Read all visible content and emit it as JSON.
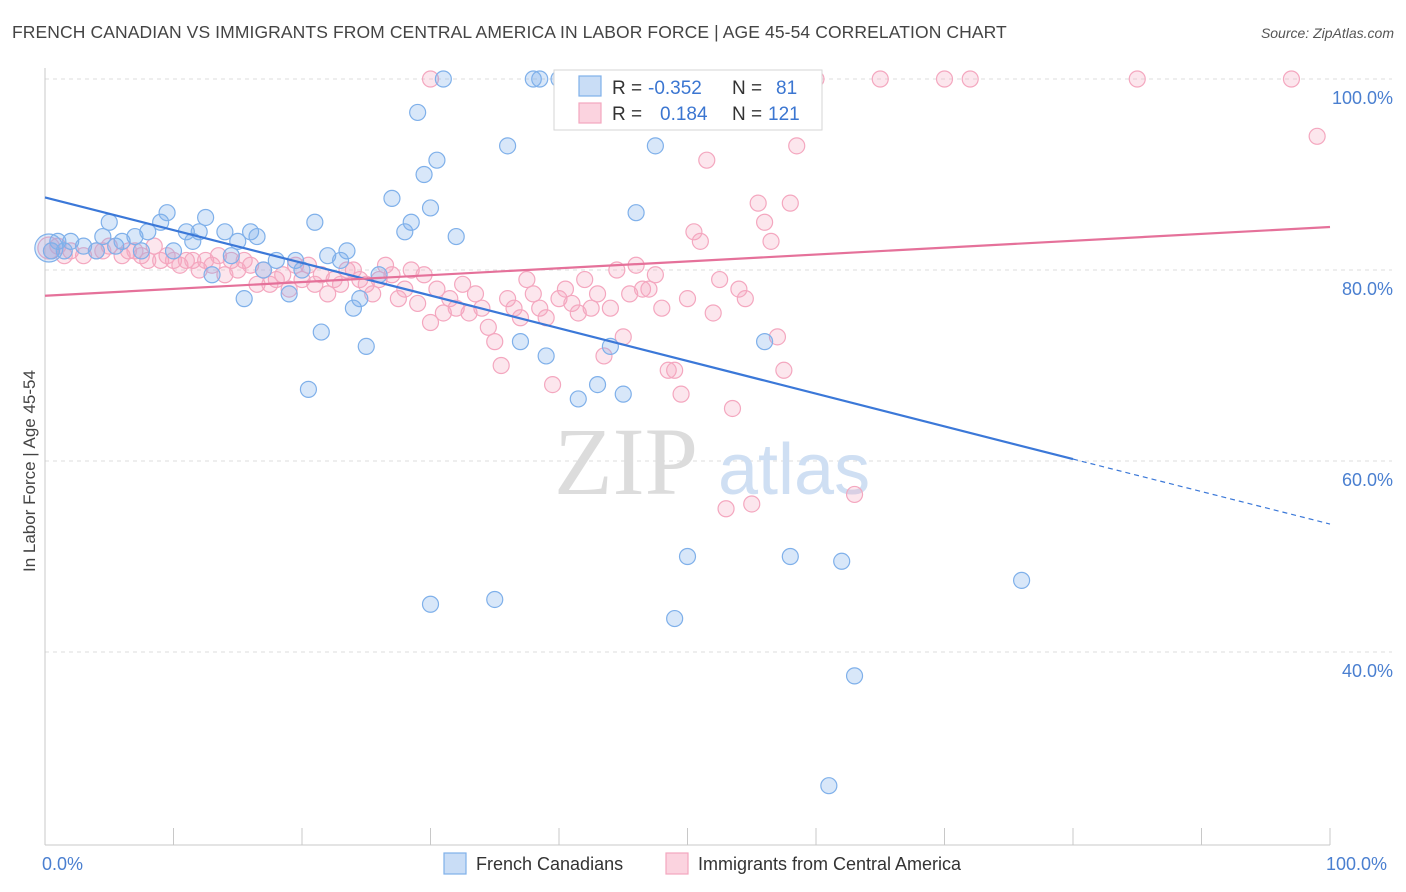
{
  "title": "FRENCH CANADIAN VS IMMIGRANTS FROM CENTRAL AMERICA IN LABOR FORCE | AGE 45-54 CORRELATION CHART",
  "source": "Source: ZipAtlas.com",
  "watermark": {
    "zip": "ZIP",
    "atlas": "atlas"
  },
  "legend": {
    "r_label": "R =",
    "n_label": "N =",
    "rows": [
      {
        "r": "-0.352",
        "n": "81",
        "color": "#7fb0ea"
      },
      {
        "r": "0.184",
        "n": "121",
        "color": "#f4a7bf"
      }
    ]
  },
  "bottom_legend": [
    "French Canadians",
    "Immigrants from Central America"
  ],
  "chart_data": {
    "type": "scatter",
    "title": "FRENCH CANADIAN VS IMMIGRANTS FROM CENTRAL AMERICA IN LABOR FORCE | AGE 45-54 CORRELATION CHART",
    "xlabel": "",
    "ylabel": "In Labor Force | Age 45-54",
    "xlim": [
      0,
      100
    ],
    "ylim": [
      20,
      102
    ],
    "x_tick_labels": [
      "0.0%",
      "100.0%"
    ],
    "y_ticks": [
      40,
      60,
      80,
      100
    ],
    "y_tick_labels": [
      "40.0%",
      "60.0%",
      "80.0%",
      "100.0%"
    ],
    "grid": true,
    "legend_position": "top-center",
    "series": [
      {
        "name": "French Canadians",
        "color": "#7fb0ea",
        "line_color": "#3b78d8",
        "r": -0.352,
        "n": 81,
        "trend": {
          "x0": 0,
          "y0": 87.6,
          "x1": 80,
          "y1": 60.2,
          "dash_to_x": 100,
          "dash_to_y": 53.4
        },
        "points": [
          [
            0.5,
            82
          ],
          [
            1,
            83
          ],
          [
            1.5,
            82
          ],
          [
            2,
            83
          ],
          [
            3,
            82.5
          ],
          [
            4,
            82
          ],
          [
            4.5,
            83.5
          ],
          [
            5,
            85
          ],
          [
            5.5,
            82.5
          ],
          [
            6,
            83
          ],
          [
            7,
            83.5
          ],
          [
            7.5,
            82
          ],
          [
            8,
            84
          ],
          [
            9,
            85
          ],
          [
            9.5,
            86
          ],
          [
            10,
            82
          ],
          [
            11,
            84
          ],
          [
            11.5,
            83
          ],
          [
            12,
            84
          ],
          [
            12.5,
            85.5
          ],
          [
            13,
            79.5
          ],
          [
            14,
            84
          ],
          [
            14.5,
            81.5
          ],
          [
            15,
            83
          ],
          [
            15.5,
            77
          ],
          [
            16,
            84
          ],
          [
            16.5,
            83.5
          ],
          [
            17,
            80
          ],
          [
            18,
            81
          ],
          [
            19,
            77.5
          ],
          [
            19.5,
            81
          ],
          [
            20,
            80
          ],
          [
            20.5,
            67.5
          ],
          [
            21,
            85
          ],
          [
            21.5,
            73.5
          ],
          [
            22,
            81.5
          ],
          [
            23,
            81
          ],
          [
            23.5,
            82
          ],
          [
            24,
            76
          ],
          [
            24.5,
            77
          ],
          [
            25,
            72
          ],
          [
            26,
            79.5
          ],
          [
            27,
            87.5
          ],
          [
            28,
            84
          ],
          [
            28.5,
            85
          ],
          [
            29,
            96.5
          ],
          [
            29.5,
            90
          ],
          [
            30,
            86.5
          ],
          [
            30.5,
            91.5
          ],
          [
            31,
            100
          ],
          [
            32,
            83.5
          ],
          [
            30,
            45
          ],
          [
            35,
            45.5
          ],
          [
            36,
            93
          ],
          [
            37,
            72.5
          ],
          [
            38,
            100
          ],
          [
            38.5,
            100
          ],
          [
            39,
            71
          ],
          [
            40,
            100
          ],
          [
            41,
            100
          ],
          [
            41.5,
            66.5
          ],
          [
            42,
            100
          ],
          [
            42.5,
            100
          ],
          [
            43,
            68
          ],
          [
            44,
            72
          ],
          [
            45,
            67
          ],
          [
            46,
            86
          ],
          [
            46.5,
            100
          ],
          [
            47,
            100
          ],
          [
            47.5,
            93
          ],
          [
            49,
            43.5
          ],
          [
            50,
            50
          ],
          [
            52,
            100
          ],
          [
            53,
            100
          ],
          [
            54,
            100
          ],
          [
            56,
            72.5
          ],
          [
            58,
            50
          ],
          [
            62,
            49.5
          ],
          [
            63,
            37.5
          ],
          [
            76,
            47.5
          ],
          [
            61,
            26
          ]
        ]
      },
      {
        "name": "Immigrants from Central America",
        "color": "#f4a7bf",
        "line_color": "#e5719a",
        "r": 0.184,
        "n": 121,
        "trend": {
          "x0": 0,
          "y0": 77.3,
          "x1": 100,
          "y1": 84.5
        },
        "points": [
          [
            0.5,
            82
          ],
          [
            1,
            82.5
          ],
          [
            1.5,
            81.5
          ],
          [
            2,
            82
          ],
          [
            3,
            81.5
          ],
          [
            4,
            82
          ],
          [
            4.5,
            82
          ],
          [
            5,
            82.5
          ],
          [
            6,
            81.5
          ],
          [
            6.5,
            82
          ],
          [
            7,
            82
          ],
          [
            7.5,
            81.5
          ],
          [
            8,
            81
          ],
          [
            8.5,
            82.5
          ],
          [
            9,
            81
          ],
          [
            9.5,
            81.5
          ],
          [
            10,
            81
          ],
          [
            10.5,
            80.5
          ],
          [
            11,
            81
          ],
          [
            11.5,
            81
          ],
          [
            12,
            80
          ],
          [
            12.5,
            81
          ],
          [
            13,
            80.5
          ],
          [
            13.5,
            81.5
          ],
          [
            14,
            79.5
          ],
          [
            14.5,
            81
          ],
          [
            15,
            80
          ],
          [
            15.5,
            81
          ],
          [
            16,
            80.5
          ],
          [
            16.5,
            78.5
          ],
          [
            17,
            80
          ],
          [
            17.5,
            78.5
          ],
          [
            18,
            79
          ],
          [
            18.5,
            79.5
          ],
          [
            19,
            78
          ],
          [
            19.5,
            80.5
          ],
          [
            20,
            79
          ],
          [
            20.5,
            80.5
          ],
          [
            21,
            78.5
          ],
          [
            21.5,
            79.5
          ],
          [
            22,
            77.5
          ],
          [
            22.5,
            79
          ],
          [
            23,
            78.5
          ],
          [
            23.5,
            80
          ],
          [
            24,
            80
          ],
          [
            24.5,
            79
          ],
          [
            25,
            78.5
          ],
          [
            25.5,
            77.5
          ],
          [
            26,
            79
          ],
          [
            26.5,
            80.5
          ],
          [
            27,
            79.5
          ],
          [
            27.5,
            77
          ],
          [
            28,
            78
          ],
          [
            28.5,
            80
          ],
          [
            29,
            76.5
          ],
          [
            29.5,
            79.5
          ],
          [
            30,
            74.5
          ],
          [
            30.5,
            78
          ],
          [
            31,
            75.5
          ],
          [
            31.5,
            77
          ],
          [
            32,
            76
          ],
          [
            32.5,
            78.5
          ],
          [
            33,
            75.5
          ],
          [
            33.5,
            77.5
          ],
          [
            34,
            76
          ],
          [
            34.5,
            74
          ],
          [
            35,
            72.5
          ],
          [
            35.5,
            70
          ],
          [
            36,
            77
          ],
          [
            36.5,
            76
          ],
          [
            37,
            75
          ],
          [
            37.5,
            79
          ],
          [
            38,
            77.5
          ],
          [
            38.5,
            76
          ],
          [
            39,
            75
          ],
          [
            39.5,
            68
          ],
          [
            40,
            77
          ],
          [
            40.5,
            78
          ],
          [
            41,
            76.5
          ],
          [
            41.5,
            75.5
          ],
          [
            42,
            79
          ],
          [
            42.5,
            76
          ],
          [
            43,
            77.5
          ],
          [
            43.5,
            71
          ],
          [
            44,
            76
          ],
          [
            44.5,
            80
          ],
          [
            45,
            73
          ],
          [
            45.5,
            77.5
          ],
          [
            46,
            80.5
          ],
          [
            46.5,
            78
          ],
          [
            47,
            78
          ],
          [
            47.5,
            79.5
          ],
          [
            48,
            76
          ],
          [
            48.5,
            69.5
          ],
          [
            49,
            69.5
          ],
          [
            49.5,
            67
          ],
          [
            50,
            77
          ],
          [
            50.5,
            84
          ],
          [
            51,
            83
          ],
          [
            51.5,
            91.5
          ],
          [
            52,
            75.5
          ],
          [
            52.5,
            79
          ],
          [
            53,
            55
          ],
          [
            53.5,
            65.5
          ],
          [
            54,
            78
          ],
          [
            54.5,
            77
          ],
          [
            55,
            55.5
          ],
          [
            55.5,
            87
          ],
          [
            56,
            85
          ],
          [
            56.5,
            83
          ],
          [
            57,
            73
          ],
          [
            57.5,
            69.5
          ],
          [
            58,
            87
          ],
          [
            58.5,
            93
          ],
          [
            59,
            100
          ],
          [
            60,
            100
          ],
          [
            65,
            100
          ],
          [
            70,
            100
          ],
          [
            72,
            100
          ],
          [
            85,
            100
          ],
          [
            97,
            100
          ],
          [
            99,
            94
          ],
          [
            63,
            56.5
          ],
          [
            30,
            100
          ]
        ]
      }
    ]
  }
}
